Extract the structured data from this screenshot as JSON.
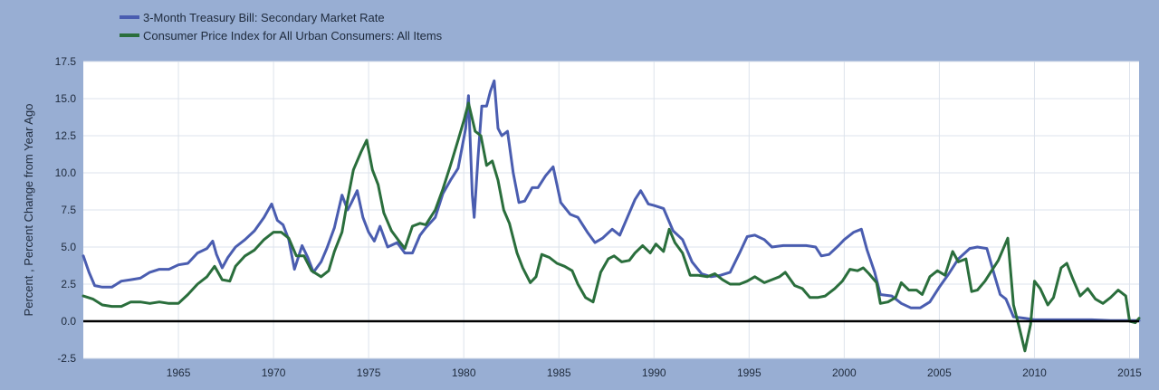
{
  "chart_data": {
    "type": "line",
    "title": "",
    "xlabel": "",
    "ylabel": "Percent , Percent Change from Year Ago",
    "xlim": [
      1960,
      2015.5
    ],
    "ylim": [
      -2.5,
      17.5
    ],
    "grid": true,
    "legend_position": "top-left",
    "x_ticks": [
      "1965",
      "1970",
      "1975",
      "1980",
      "1985",
      "1990",
      "1995",
      "2000",
      "2005",
      "2010",
      "2015"
    ],
    "y_ticks": [
      "17.5",
      "15.0",
      "12.5",
      "10.0",
      "7.5",
      "5.0",
      "2.5",
      "0.0",
      "-2.5"
    ],
    "colors": {
      "background": "#98aed3",
      "plot_background": "#ffffff",
      "grid": "#dde3ec",
      "zero_line": "#000000"
    },
    "series": [
      {
        "name": "3-Month Treasury Bill: Secondary Market Rate",
        "color": "#4a5db0",
        "points": [
          [
            1960.0,
            4.4
          ],
          [
            1960.3,
            3.3
          ],
          [
            1960.6,
            2.4
          ],
          [
            1961.0,
            2.3
          ],
          [
            1961.5,
            2.3
          ],
          [
            1962.0,
            2.7
          ],
          [
            1962.5,
            2.8
          ],
          [
            1963.0,
            2.9
          ],
          [
            1963.5,
            3.3
          ],
          [
            1964.0,
            3.5
          ],
          [
            1964.5,
            3.5
          ],
          [
            1965.0,
            3.8
          ],
          [
            1965.5,
            3.9
          ],
          [
            1966.0,
            4.6
          ],
          [
            1966.5,
            4.9
          ],
          [
            1966.8,
            5.4
          ],
          [
            1967.0,
            4.5
          ],
          [
            1967.3,
            3.6
          ],
          [
            1967.6,
            4.3
          ],
          [
            1968.0,
            5.0
          ],
          [
            1968.5,
            5.5
          ],
          [
            1969.0,
            6.1
          ],
          [
            1969.5,
            7.0
          ],
          [
            1969.9,
            7.9
          ],
          [
            1970.2,
            6.8
          ],
          [
            1970.5,
            6.5
          ],
          [
            1970.8,
            5.5
          ],
          [
            1971.1,
            3.5
          ],
          [
            1971.5,
            5.1
          ],
          [
            1971.8,
            4.3
          ],
          [
            1972.1,
            3.3
          ],
          [
            1972.5,
            4.0
          ],
          [
            1972.8,
            4.9
          ],
          [
            1973.2,
            6.3
          ],
          [
            1973.6,
            8.5
          ],
          [
            1973.9,
            7.5
          ],
          [
            1974.1,
            8.0
          ],
          [
            1974.4,
            8.8
          ],
          [
            1974.7,
            7.0
          ],
          [
            1975.0,
            6.0
          ],
          [
            1975.3,
            5.4
          ],
          [
            1975.6,
            6.4
          ],
          [
            1976.0,
            5.0
          ],
          [
            1976.5,
            5.3
          ],
          [
            1976.9,
            4.6
          ],
          [
            1977.3,
            4.6
          ],
          [
            1977.7,
            5.8
          ],
          [
            1978.0,
            6.3
          ],
          [
            1978.5,
            7.0
          ],
          [
            1978.9,
            8.6
          ],
          [
            1979.3,
            9.5
          ],
          [
            1979.7,
            10.3
          ],
          [
            1980.1,
            13.0
          ],
          [
            1980.25,
            15.2
          ],
          [
            1980.45,
            8.5
          ],
          [
            1980.55,
            7.0
          ],
          [
            1980.75,
            11.0
          ],
          [
            1980.95,
            14.5
          ],
          [
            1981.2,
            14.5
          ],
          [
            1981.4,
            15.5
          ],
          [
            1981.6,
            16.2
          ],
          [
            1981.8,
            13.0
          ],
          [
            1982.0,
            12.5
          ],
          [
            1982.3,
            12.8
          ],
          [
            1982.6,
            10.0
          ],
          [
            1982.9,
            8.0
          ],
          [
            1983.2,
            8.1
          ],
          [
            1983.6,
            9.0
          ],
          [
            1983.9,
            9.0
          ],
          [
            1984.3,
            9.8
          ],
          [
            1984.7,
            10.4
          ],
          [
            1985.1,
            8.0
          ],
          [
            1985.6,
            7.2
          ],
          [
            1986.0,
            7.0
          ],
          [
            1986.5,
            6.0
          ],
          [
            1986.9,
            5.3
          ],
          [
            1987.3,
            5.6
          ],
          [
            1987.8,
            6.2
          ],
          [
            1988.2,
            5.8
          ],
          [
            1988.6,
            7.0
          ],
          [
            1989.0,
            8.2
          ],
          [
            1989.3,
            8.8
          ],
          [
            1989.7,
            7.9
          ],
          [
            1990.0,
            7.8
          ],
          [
            1990.5,
            7.6
          ],
          [
            1991.0,
            6.1
          ],
          [
            1991.5,
            5.5
          ],
          [
            1992.0,
            4.0
          ],
          [
            1992.5,
            3.2
          ],
          [
            1993.0,
            3.0
          ],
          [
            1993.5,
            3.1
          ],
          [
            1994.0,
            3.3
          ],
          [
            1994.5,
            4.6
          ],
          [
            1994.9,
            5.7
          ],
          [
            1995.3,
            5.8
          ],
          [
            1995.8,
            5.5
          ],
          [
            1996.2,
            5.0
          ],
          [
            1996.8,
            5.1
          ],
          [
            1997.4,
            5.1
          ],
          [
            1998.0,
            5.1
          ],
          [
            1998.5,
            5.0
          ],
          [
            1998.8,
            4.4
          ],
          [
            1999.2,
            4.5
          ],
          [
            1999.7,
            5.1
          ],
          [
            2000.0,
            5.5
          ],
          [
            2000.5,
            6.0
          ],
          [
            2000.9,
            6.2
          ],
          [
            2001.2,
            4.8
          ],
          [
            2001.6,
            3.3
          ],
          [
            2001.9,
            1.8
          ],
          [
            2002.5,
            1.7
          ],
          [
            2003.0,
            1.2
          ],
          [
            2003.5,
            0.9
          ],
          [
            2004.0,
            0.9
          ],
          [
            2004.5,
            1.3
          ],
          [
            2005.0,
            2.3
          ],
          [
            2005.5,
            3.2
          ],
          [
            2006.0,
            4.2
          ],
          [
            2006.6,
            4.9
          ],
          [
            2007.0,
            5.0
          ],
          [
            2007.5,
            4.9
          ],
          [
            2007.9,
            3.1
          ],
          [
            2008.2,
            1.8
          ],
          [
            2008.5,
            1.5
          ],
          [
            2008.9,
            0.3
          ],
          [
            2009.5,
            0.2
          ],
          [
            2010.0,
            0.1
          ],
          [
            2011.0,
            0.1
          ],
          [
            2012.0,
            0.1
          ],
          [
            2013.0,
            0.1
          ],
          [
            2014.0,
            0.05
          ],
          [
            2015.5,
            0.05
          ]
        ]
      },
      {
        "name": "Consumer Price Index for All Urban Consumers: All Items",
        "color": "#2a6e3c",
        "points": [
          [
            1960.0,
            1.7
          ],
          [
            1960.5,
            1.5
          ],
          [
            1961.0,
            1.1
          ],
          [
            1961.5,
            1.0
          ],
          [
            1962.0,
            1.0
          ],
          [
            1962.5,
            1.3
          ],
          [
            1963.0,
            1.3
          ],
          [
            1963.5,
            1.2
          ],
          [
            1964.0,
            1.3
          ],
          [
            1964.5,
            1.2
          ],
          [
            1965.0,
            1.2
          ],
          [
            1965.5,
            1.8
          ],
          [
            1966.0,
            2.5
          ],
          [
            1966.5,
            3.0
          ],
          [
            1966.9,
            3.7
          ],
          [
            1967.3,
            2.8
          ],
          [
            1967.7,
            2.7
          ],
          [
            1968.0,
            3.7
          ],
          [
            1968.5,
            4.4
          ],
          [
            1969.0,
            4.8
          ],
          [
            1969.5,
            5.5
          ],
          [
            1970.0,
            6.0
          ],
          [
            1970.4,
            6.0
          ],
          [
            1970.8,
            5.6
          ],
          [
            1971.2,
            4.4
          ],
          [
            1971.6,
            4.4
          ],
          [
            1972.0,
            3.4
          ],
          [
            1972.5,
            3.0
          ],
          [
            1972.9,
            3.4
          ],
          [
            1973.2,
            4.7
          ],
          [
            1973.6,
            6.0
          ],
          [
            1973.9,
            8.2
          ],
          [
            1974.2,
            10.2
          ],
          [
            1974.6,
            11.4
          ],
          [
            1974.9,
            12.2
          ],
          [
            1975.2,
            10.2
          ],
          [
            1975.5,
            9.2
          ],
          [
            1975.8,
            7.3
          ],
          [
            1976.2,
            6.1
          ],
          [
            1976.6,
            5.4
          ],
          [
            1976.9,
            4.9
          ],
          [
            1977.3,
            6.4
          ],
          [
            1977.7,
            6.6
          ],
          [
            1978.0,
            6.5
          ],
          [
            1978.5,
            7.5
          ],
          [
            1978.9,
            8.9
          ],
          [
            1979.3,
            10.5
          ],
          [
            1979.7,
            12.2
          ],
          [
            1980.0,
            13.5
          ],
          [
            1980.25,
            14.7
          ],
          [
            1980.6,
            12.8
          ],
          [
            1980.9,
            12.5
          ],
          [
            1981.2,
            10.5
          ],
          [
            1981.5,
            10.8
          ],
          [
            1981.8,
            9.5
          ],
          [
            1982.1,
            7.5
          ],
          [
            1982.4,
            6.6
          ],
          [
            1982.8,
            4.6
          ],
          [
            1983.1,
            3.6
          ],
          [
            1983.5,
            2.6
          ],
          [
            1983.8,
            3.0
          ],
          [
            1984.1,
            4.5
          ],
          [
            1984.5,
            4.3
          ],
          [
            1984.9,
            3.9
          ],
          [
            1985.3,
            3.7
          ],
          [
            1985.7,
            3.4
          ],
          [
            1986.0,
            2.5
          ],
          [
            1986.4,
            1.6
          ],
          [
            1986.8,
            1.3
          ],
          [
            1987.2,
            3.3
          ],
          [
            1987.6,
            4.2
          ],
          [
            1987.9,
            4.4
          ],
          [
            1988.3,
            4.0
          ],
          [
            1988.7,
            4.1
          ],
          [
            1989.0,
            4.6
          ],
          [
            1989.4,
            5.1
          ],
          [
            1989.8,
            4.6
          ],
          [
            1990.1,
            5.2
          ],
          [
            1990.5,
            4.7
          ],
          [
            1990.8,
            6.2
          ],
          [
            1991.1,
            5.3
          ],
          [
            1991.5,
            4.6
          ],
          [
            1991.9,
            3.1
          ],
          [
            1992.3,
            3.1
          ],
          [
            1992.8,
            3.0
          ],
          [
            1993.2,
            3.2
          ],
          [
            1993.6,
            2.8
          ],
          [
            1994.0,
            2.5
          ],
          [
            1994.5,
            2.5
          ],
          [
            1994.9,
            2.7
          ],
          [
            1995.3,
            3.0
          ],
          [
            1995.8,
            2.6
          ],
          [
            1996.2,
            2.8
          ],
          [
            1996.6,
            3.0
          ],
          [
            1996.9,
            3.3
          ],
          [
            1997.4,
            2.4
          ],
          [
            1997.8,
            2.2
          ],
          [
            1998.2,
            1.6
          ],
          [
            1998.6,
            1.6
          ],
          [
            1999.0,
            1.7
          ],
          [
            1999.5,
            2.2
          ],
          [
            1999.9,
            2.7
          ],
          [
            2000.3,
            3.5
          ],
          [
            2000.7,
            3.4
          ],
          [
            2001.0,
            3.6
          ],
          [
            2001.3,
            3.2
          ],
          [
            2001.7,
            2.6
          ],
          [
            2001.9,
            1.2
          ],
          [
            2002.3,
            1.3
          ],
          [
            2002.7,
            1.6
          ],
          [
            2003.0,
            2.6
          ],
          [
            2003.4,
            2.1
          ],
          [
            2003.8,
            2.1
          ],
          [
            2004.1,
            1.8
          ],
          [
            2004.5,
            3.0
          ],
          [
            2004.9,
            3.4
          ],
          [
            2005.3,
            3.1
          ],
          [
            2005.7,
            4.7
          ],
          [
            2006.0,
            4.0
          ],
          [
            2006.4,
            4.2
          ],
          [
            2006.7,
            2.0
          ],
          [
            2007.0,
            2.1
          ],
          [
            2007.4,
            2.7
          ],
          [
            2007.8,
            3.5
          ],
          [
            2008.1,
            4.1
          ],
          [
            2008.6,
            5.6
          ],
          [
            2008.9,
            1.1
          ],
          [
            2009.2,
            -0.4
          ],
          [
            2009.5,
            -2.0
          ],
          [
            2009.8,
            -0.2
          ],
          [
            2010.0,
            2.7
          ],
          [
            2010.3,
            2.2
          ],
          [
            2010.7,
            1.1
          ],
          [
            2011.0,
            1.6
          ],
          [
            2011.4,
            3.6
          ],
          [
            2011.7,
            3.9
          ],
          [
            2012.0,
            2.9
          ],
          [
            2012.4,
            1.7
          ],
          [
            2012.8,
            2.2
          ],
          [
            2013.2,
            1.5
          ],
          [
            2013.6,
            1.2
          ],
          [
            2014.0,
            1.6
          ],
          [
            2014.4,
            2.1
          ],
          [
            2014.8,
            1.7
          ],
          [
            2015.0,
            0.0
          ],
          [
            2015.3,
            -0.1
          ],
          [
            2015.5,
            0.2
          ]
        ]
      }
    ]
  }
}
